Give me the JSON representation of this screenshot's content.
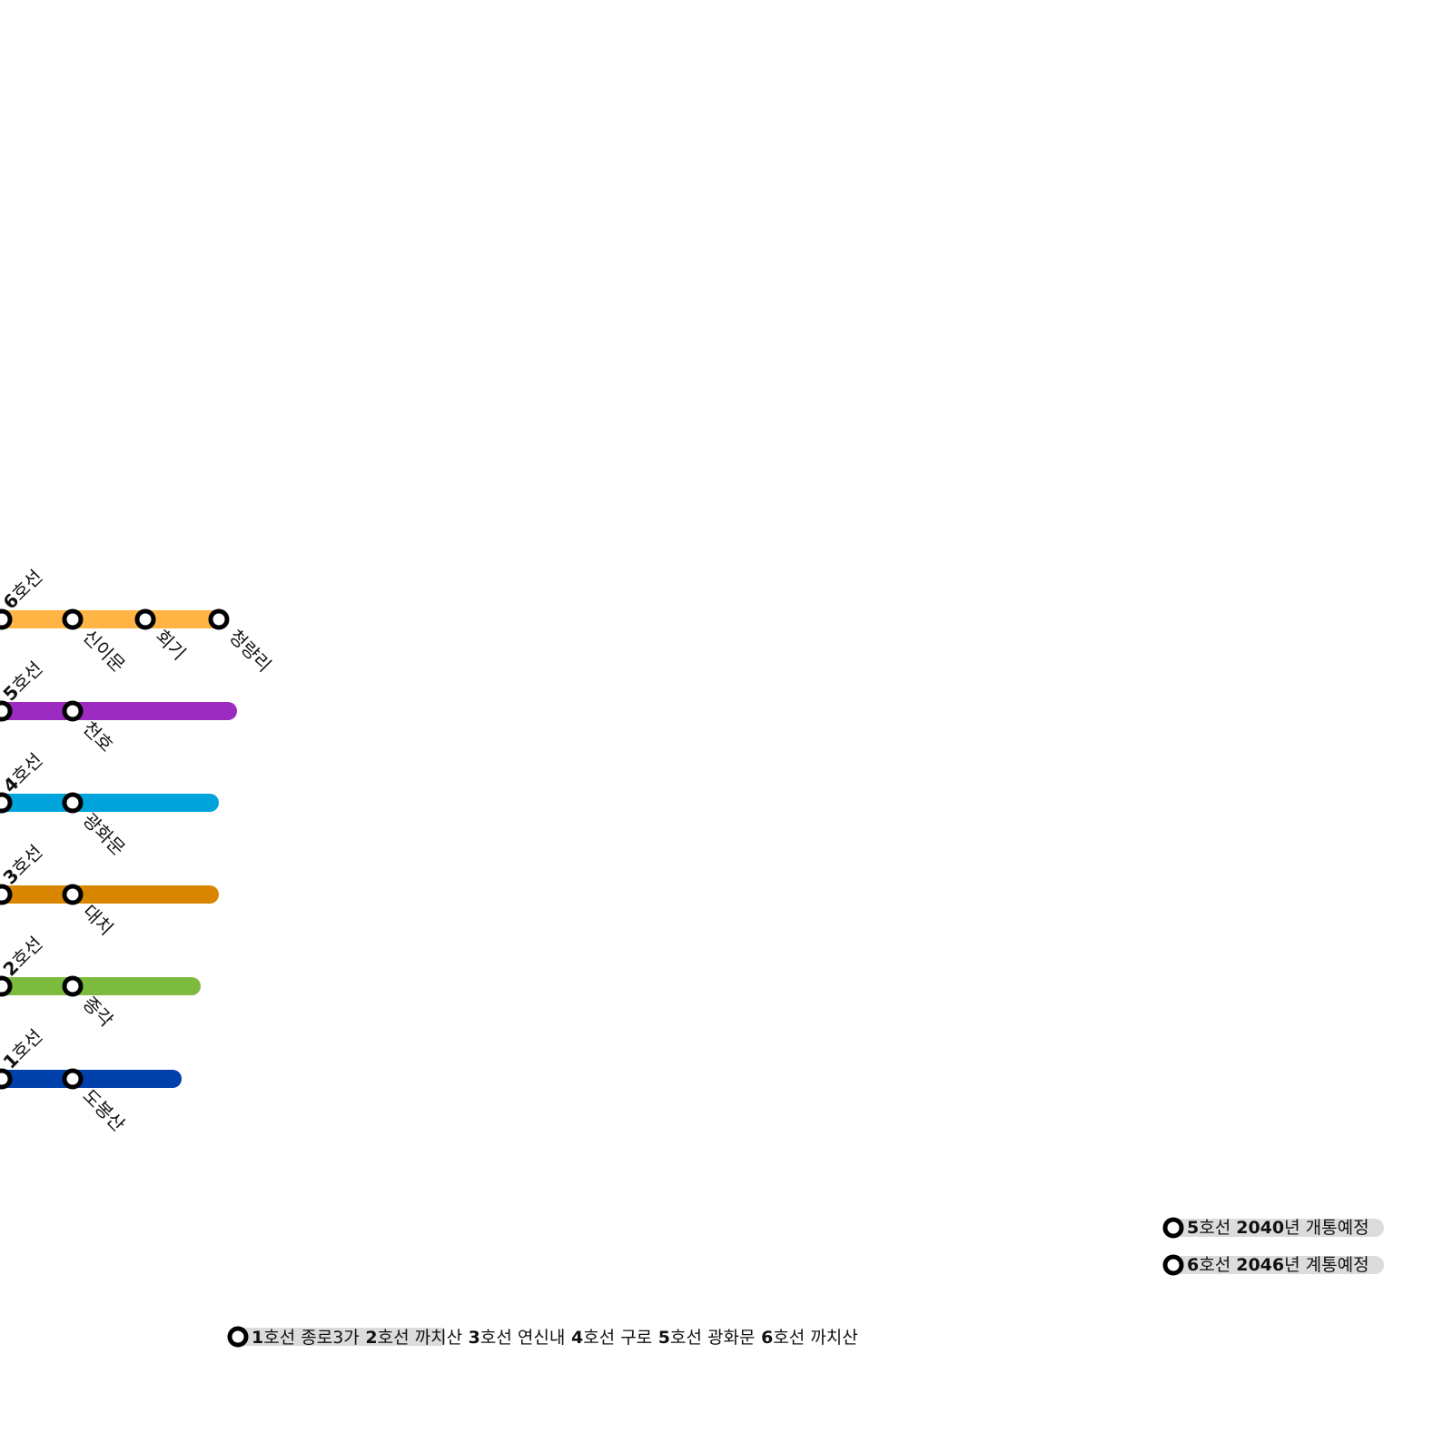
{
  "colors": {
    "line_1": "#0040aa",
    "line_2": "#7cbb3d",
    "line_3": "#d88600",
    "line_4": "#00a3da",
    "line_5": "#9b2bc1",
    "line_6": "#ffb443",
    "station_ring": "#000000",
    "station_fill": "#ffffff",
    "note_background": "#dcdcdc"
  },
  "lines": [
    {
      "id": "6",
      "number": "6",
      "suffix": "호선",
      "color_key": "line_6",
      "stations": [
        "신이문",
        "회기",
        "청량리"
      ]
    },
    {
      "id": "5",
      "number": "5",
      "suffix": "호선",
      "color_key": "line_5",
      "stations": [
        "천호"
      ]
    },
    {
      "id": "4",
      "number": "4",
      "suffix": "호선",
      "color_key": "line_4",
      "stations": [
        "광화문"
      ]
    },
    {
      "id": "3",
      "number": "3",
      "suffix": "호선",
      "color_key": "line_3",
      "stations": [
        "대치"
      ]
    },
    {
      "id": "2",
      "number": "2",
      "suffix": "호선",
      "color_key": "line_2",
      "stations": [
        "종각"
      ]
    },
    {
      "id": "1",
      "number": "1",
      "suffix": "호선",
      "color_key": "line_1",
      "stations": [
        "도봉산"
      ]
    }
  ],
  "planned_notes": [
    {
      "line_num": "5",
      "line_suffix": "호선",
      "year": "2040",
      "text": "년 개통예정"
    },
    {
      "line_num": "6",
      "line_suffix": "호선",
      "year": "2046",
      "text": "년 계통예정"
    }
  ],
  "bottom_legend": [
    {
      "num": "1",
      "suffix": "호선",
      "station": "종로3가"
    },
    {
      "num": "2",
      "suffix": "호선",
      "station": "까치산"
    },
    {
      "num": "3",
      "suffix": "호선",
      "station": "연신내"
    },
    {
      "num": "4",
      "suffix": "호선",
      "station": "구로"
    },
    {
      "num": "5",
      "suffix": "호선",
      "station": "광화문"
    },
    {
      "num": "6",
      "suffix": "호선",
      "station": "까치산"
    }
  ]
}
